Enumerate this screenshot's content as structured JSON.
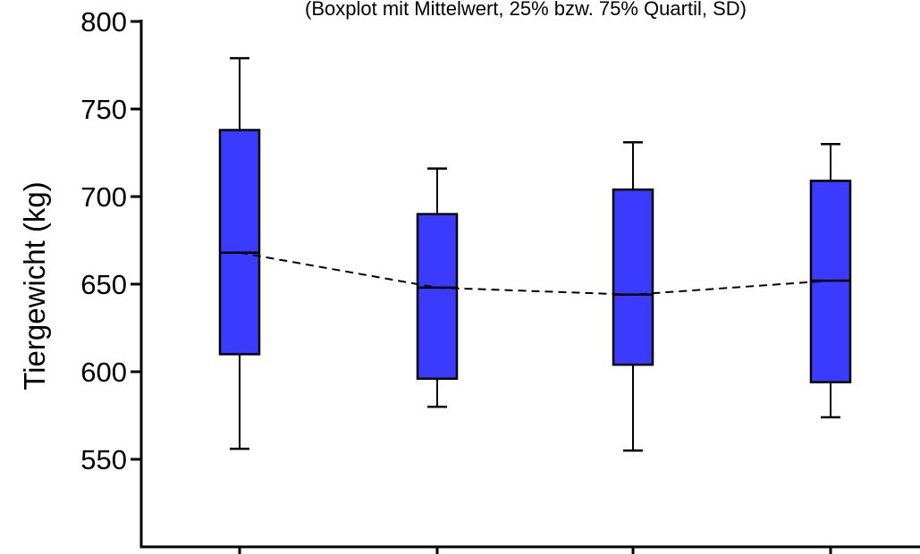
{
  "chart_data": {
    "type": "boxplot",
    "title": "(Boxplot mit Mittelwert, 25% bzw. 75% Quartil, SD)",
    "ylabel": "Tiergewicht (kg)",
    "xlabel": "",
    "ylim": [
      500,
      800
    ],
    "y_ticks": [
      550,
      600,
      650,
      700,
      750,
      800
    ],
    "grid": false,
    "legend": "none",
    "box_color": "#3b3bff",
    "line_color": "#000000",
    "mean_line": "dashed",
    "boxes": [
      {
        "whisker_low": 556,
        "q1": 610,
        "mean": 668,
        "q3": 738,
        "whisker_high": 779
      },
      {
        "whisker_low": 580,
        "q1": 596,
        "mean": 648,
        "q3": 690,
        "whisker_high": 716
      },
      {
        "whisker_low": 555,
        "q1": 604,
        "mean": 644,
        "q3": 704,
        "whisker_high": 731
      },
      {
        "whisker_low": 574,
        "q1": 594,
        "mean": 652,
        "q3": 709,
        "whisker_high": 730
      }
    ]
  }
}
